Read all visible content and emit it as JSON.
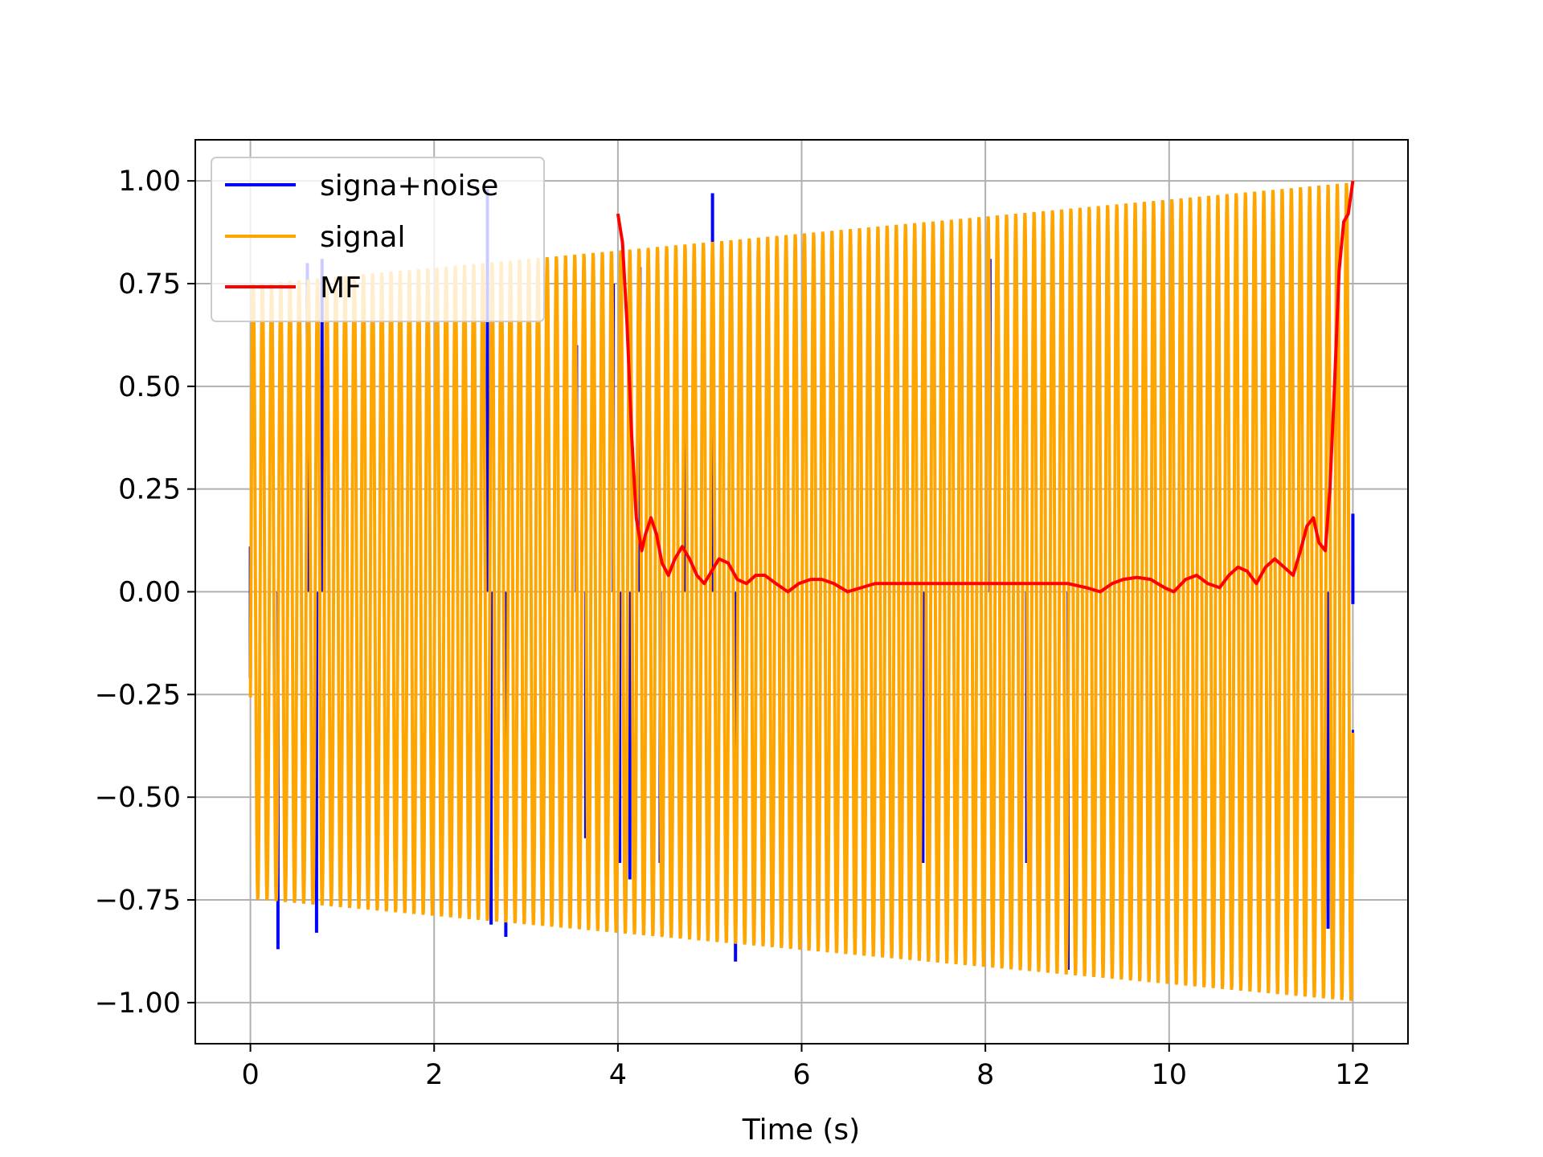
{
  "chart_data": {
    "type": "line",
    "title": "",
    "xlabel": "Time (s)",
    "ylabel": "",
    "xlim": [
      -0.6,
      12.6
    ],
    "ylim": [
      -1.1,
      1.1
    ],
    "xticks": [
      0,
      2,
      4,
      6,
      8,
      10,
      12
    ],
    "xtick_labels": [
      "0",
      "2",
      "4",
      "6",
      "8",
      "10",
      "12"
    ],
    "yticks": [
      1.0,
      0.75,
      0.5,
      0.25,
      0.0,
      -0.25,
      -0.5,
      -0.75,
      -1.0
    ],
    "ytick_labels": [
      "1.00",
      "0.75",
      "0.50",
      "0.25",
      "0.00",
      "−0.25",
      "−0.50",
      "−0.75",
      "−1.00"
    ],
    "grid": true,
    "legend_position": "upper-left",
    "series": [
      {
        "name": "signa+noise",
        "color": "#0000ff",
        "kind": "oscillation",
        "t_start": 0,
        "t_end": 12,
        "cycles": 120,
        "envelope_start": 0.75,
        "envelope_end": 1.0,
        "spikes": [
          {
            "x": 0.0,
            "y": 0.11
          },
          {
            "x": 0.0,
            "y": -0.21
          },
          {
            "x": 0.3,
            "y": -0.87
          },
          {
            "x": 0.62,
            "y": 0.8
          },
          {
            "x": 0.72,
            "y": -0.83
          },
          {
            "x": 0.78,
            "y": 0.81
          },
          {
            "x": 2.58,
            "y": 0.98
          },
          {
            "x": 2.62,
            "y": -0.81
          },
          {
            "x": 2.78,
            "y": -0.84
          },
          {
            "x": 3.55,
            "y": 0.6
          },
          {
            "x": 3.65,
            "y": -0.6
          },
          {
            "x": 3.95,
            "y": 0.75
          },
          {
            "x": 4.02,
            "y": -0.66
          },
          {
            "x": 4.13,
            "y": -0.7
          },
          {
            "x": 4.24,
            "y": 0.79
          },
          {
            "x": 4.46,
            "y": -0.66
          },
          {
            "x": 4.72,
            "y": 0.6
          },
          {
            "x": 5.03,
            "y": 0.97
          },
          {
            "x": 5.28,
            "y": -0.9
          },
          {
            "x": 7.32,
            "y": -0.66
          },
          {
            "x": 8.05,
            "y": 0.81
          },
          {
            "x": 8.45,
            "y": -0.66
          },
          {
            "x": 8.9,
            "y": -0.92
          },
          {
            "x": 11.73,
            "y": -0.82
          },
          {
            "x": 12.0,
            "y": 0.19
          },
          {
            "x": 12.0,
            "y": -0.03
          }
        ]
      },
      {
        "name": "signal",
        "color": "#ffa500",
        "kind": "oscillation",
        "t_start": 0,
        "t_end": 12,
        "cycles": 120,
        "envelope_start": 0.75,
        "envelope_end": 1.0
      },
      {
        "name": "MF",
        "color": "#ff0000",
        "kind": "line",
        "x": [
          4.0,
          4.05,
          4.1,
          4.15,
          4.2,
          4.26,
          4.3,
          4.36,
          4.42,
          4.48,
          4.55,
          4.62,
          4.7,
          4.78,
          4.86,
          4.94,
          5.02,
          5.1,
          5.2,
          5.3,
          5.4,
          5.5,
          5.6,
          5.72,
          5.85,
          5.97,
          6.1,
          6.22,
          6.35,
          6.5,
          6.65,
          6.8,
          6.95,
          7.1,
          7.3,
          7.5,
          7.7,
          7.9,
          8.1,
          8.3,
          8.5,
          8.7,
          8.9,
          9.1,
          9.25,
          9.38,
          9.5,
          9.65,
          9.8,
          9.95,
          10.05,
          10.18,
          10.3,
          10.42,
          10.55,
          10.65,
          10.75,
          10.85,
          10.95,
          11.05,
          11.15,
          11.25,
          11.35,
          11.43,
          11.5,
          11.57,
          11.63,
          11.7,
          11.75,
          11.8,
          11.85,
          11.9,
          11.95,
          12.0
        ],
        "y": [
          0.92,
          0.85,
          0.65,
          0.38,
          0.18,
          0.1,
          0.14,
          0.18,
          0.14,
          0.07,
          0.04,
          0.08,
          0.11,
          0.08,
          0.04,
          0.02,
          0.05,
          0.08,
          0.07,
          0.03,
          0.02,
          0.04,
          0.04,
          0.02,
          0.0,
          0.02,
          0.03,
          0.03,
          0.02,
          0.0,
          0.01,
          0.02,
          0.02,
          0.02,
          0.02,
          0.02,
          0.02,
          0.02,
          0.02,
          0.02,
          0.02,
          0.02,
          0.02,
          0.01,
          0.0,
          0.02,
          0.03,
          0.035,
          0.03,
          0.01,
          0.0,
          0.03,
          0.04,
          0.02,
          0.01,
          0.04,
          0.06,
          0.05,
          0.02,
          0.06,
          0.08,
          0.06,
          0.04,
          0.1,
          0.16,
          0.18,
          0.12,
          0.1,
          0.25,
          0.5,
          0.78,
          0.9,
          0.92,
          1.0
        ]
      }
    ]
  }
}
